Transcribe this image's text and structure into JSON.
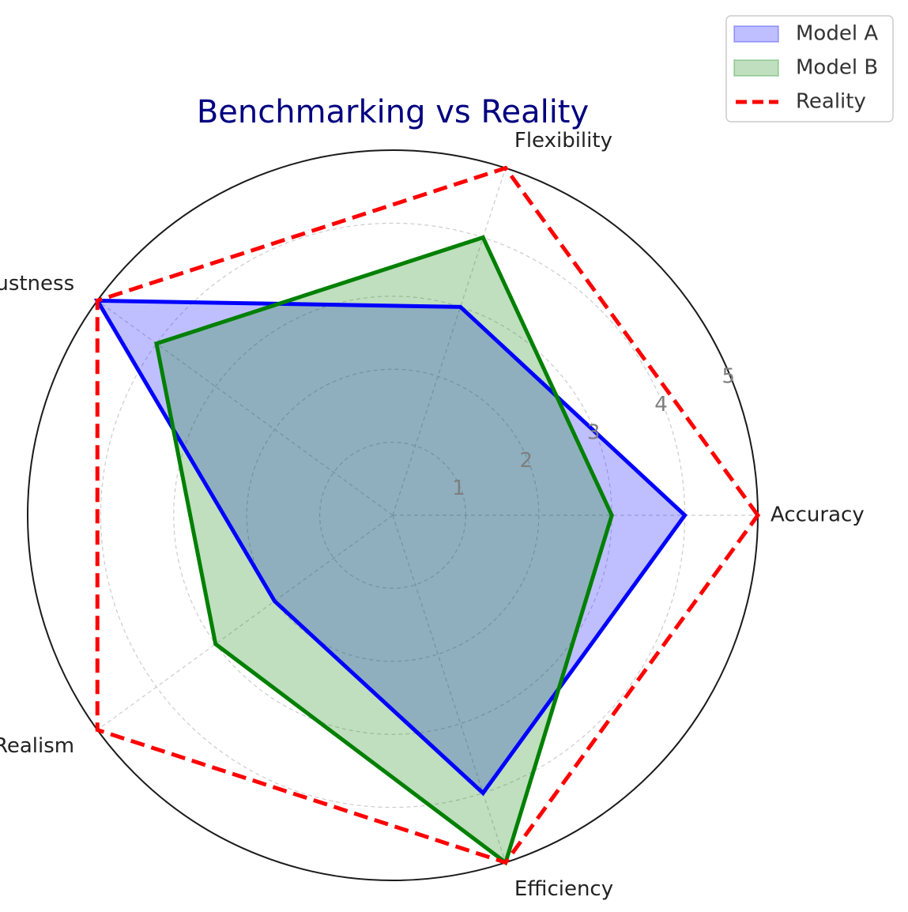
{
  "chart_data": {
    "type": "radar",
    "title": "Benchmarking vs Reality",
    "categories": [
      "Accuracy",
      "Flexibility",
      "Robustness",
      "Realism",
      "Efficiency"
    ],
    "rlim": [
      0,
      5
    ],
    "rticks": [
      1,
      2,
      3,
      4,
      5
    ],
    "rtick_labels": [
      "1",
      "2",
      "3",
      "4",
      "5"
    ],
    "grid": true,
    "legend_position": "top-right",
    "series": [
      {
        "name": "Model A",
        "values": [
          4,
          3,
          5,
          2,
          4
        ],
        "color": "#0000ff",
        "fill": "#0000ff",
        "fill_opacity": 0.25,
        "line_style": "solid"
      },
      {
        "name": "Model B",
        "values": [
          3,
          4,
          4,
          3,
          5
        ],
        "color": "#008000",
        "fill": "#008000",
        "fill_opacity": 0.25,
        "line_style": "solid"
      },
      {
        "name": "Reality",
        "values": [
          5,
          5,
          5,
          5,
          5
        ],
        "color": "#ff0000",
        "fill": null,
        "line_style": "dashed"
      }
    ]
  }
}
